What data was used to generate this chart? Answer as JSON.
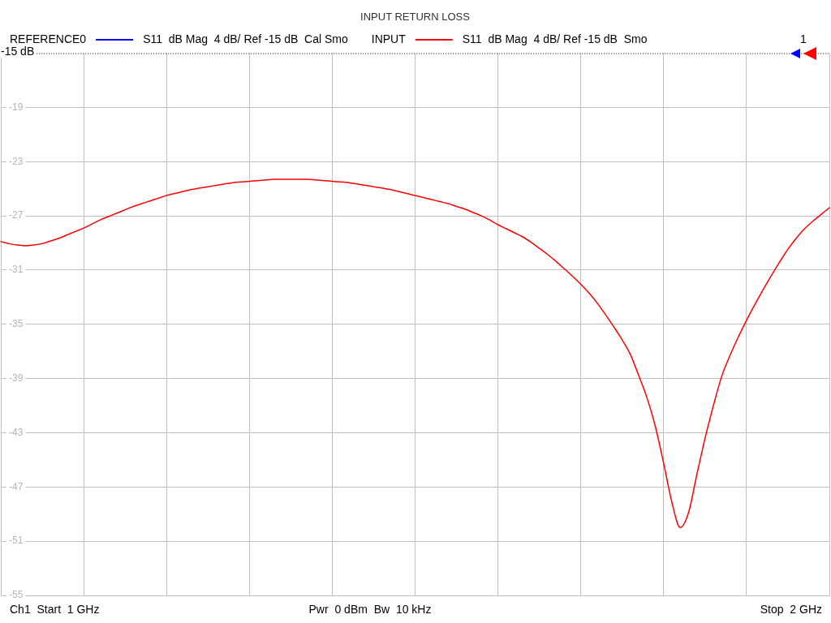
{
  "chart_data": {
    "type": "line",
    "title": "INPUT RETURN LOSS",
    "categories": [
      null,
      null,
      null,
      null,
      null,
      null,
      null,
      null,
      null,
      null,
      null,
      null,
      null,
      null,
      null,
      null,
      null,
      null,
      null,
      null,
      null,
      null,
      null,
      null,
      null,
      null,
      null,
      null,
      null,
      null,
      null,
      null,
      null,
      null,
      null,
      null,
      null,
      null,
      null,
      null,
      null,
      null,
      null,
      null,
      null,
      null,
      null,
      null,
      null,
      null,
      null,
      null,
      null,
      null,
      null,
      null,
      null,
      null,
      null,
      null,
      null,
      null,
      null,
      null,
      null,
      null,
      null,
      null,
      null,
      null,
      null,
      null,
      null,
      null,
      null,
      null,
      null,
      null,
      null,
      null,
      null,
      null,
      null,
      null,
      null,
      null,
      null,
      null,
      null,
      null,
      null,
      null,
      null,
      null,
      null,
      null,
      null,
      null,
      null,
      null,
      null
    ],
    "series": [
      {
        "name": "REFERENCE0",
        "color": "#0000ff",
        "values": [
          null,
          null,
          null,
          null,
          null,
          null,
          null,
          null,
          null,
          null,
          null,
          null,
          null,
          null,
          null,
          null,
          null,
          null,
          null,
          null,
          null,
          null,
          null,
          null,
          null,
          null,
          null,
          null,
          null,
          null,
          null,
          null,
          null,
          null,
          null,
          null,
          null,
          null,
          null,
          null,
          null,
          null,
          null,
          null,
          null,
          null,
          null,
          null,
          null,
          null,
          null,
          null,
          null,
          null,
          null,
          null,
          null,
          null,
          null,
          null,
          null,
          null,
          null,
          null,
          null,
          null,
          null,
          null,
          null,
          null,
          null,
          null,
          null,
          null,
          null,
          null,
          null,
          null,
          null,
          null,
          null,
          null,
          null,
          null,
          null,
          null,
          null,
          null,
          null,
          null,
          null,
          null,
          null,
          null,
          null,
          null,
          null,
          null,
          null,
          null,
          null
        ]
      },
      {
        "name": "INPUT",
        "color": "#ff0000",
        "values": [
          -28.9,
          -29.05,
          -29.15,
          -29.2,
          -29.15,
          -29.05,
          -28.85,
          -28.65,
          -28.4,
          -28.15,
          -27.9,
          -27.6,
          -27.3,
          -27.05,
          -26.8,
          -26.55,
          -26.3,
          -26.1,
          -25.9,
          -25.7,
          -25.5,
          -25.35,
          -25.2,
          -25.05,
          -24.95,
          -24.85,
          -24.75,
          -24.65,
          -24.55,
          -24.5,
          -24.45,
          -24.4,
          -24.35,
          -24.3,
          -24.3,
          -24.3,
          -24.3,
          -24.3,
          -24.35,
          -24.4,
          -24.45,
          -24.5,
          -24.55,
          -24.65,
          -24.75,
          -24.85,
          -24.95,
          -25.05,
          -25.2,
          -25.35,
          -25.5,
          -25.65,
          -25.8,
          -25.95,
          -26.1,
          -26.3,
          -26.5,
          -26.75,
          -27.0,
          -27.3,
          -27.65,
          -27.95,
          -28.25,
          -28.55,
          -28.95,
          -29.4,
          -29.85,
          -30.35,
          -30.9,
          -31.45,
          -32.05,
          -32.7,
          -33.45,
          -34.3,
          -35.2,
          -36.15,
          -37.25,
          -38.8,
          -40.45,
          -42.55,
          -45.25,
          -48.15,
          -50.0,
          -48.9,
          -46.1,
          -43.4,
          -41.0,
          -38.85,
          -37.3,
          -35.95,
          -34.7,
          -33.55,
          -32.45,
          -31.4,
          -30.4,
          -29.45,
          -28.65,
          -27.95,
          -27.4,
          -26.9,
          -26.4
        ]
      }
    ],
    "ylim": [
      -55,
      -15
    ],
    "yticks": [
      {
        "value": -15,
        "label": null
      },
      -19,
      -23,
      -27,
      -31,
      -35,
      -39,
      -43,
      -47,
      -51,
      -55
    ],
    "ref_lines": [
      {
        "axis": "y",
        "value": -15,
        "label": "-15 dB",
        "color": "#000000",
        "line_style": "dotted"
      }
    ],
    "annotations": [
      "S11  dB Mag  4 dB/ Ref -15 dB  Cal Smo",
      "S11  dB Mag  4 dB/ Ref -15 dB  Smo",
      "1",
      "Ch1  Start  1 GHz",
      "Pwr  0 dBm  Bw  10 kHz",
      "Stop  2 GHz"
    ],
    "grid": true,
    "legend": "top",
    "tick_labels": "y"
  }
}
